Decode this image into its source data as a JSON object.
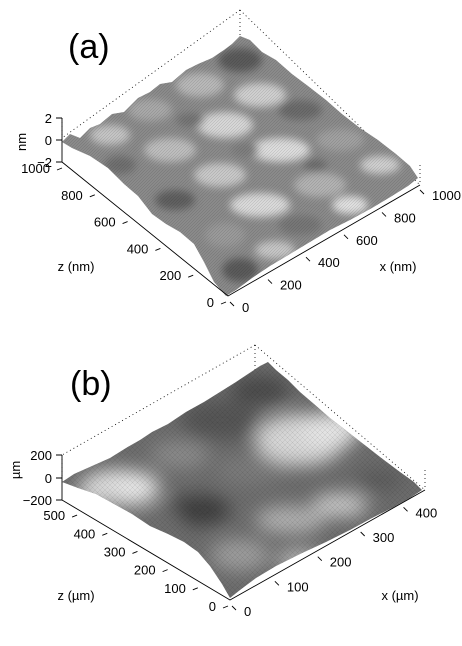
{
  "chart_data": [
    {
      "type": "surface",
      "panel_label": "(a)",
      "xlabel": "x (nm)",
      "zlabel": "z (nm)",
      "vlabel": "nm",
      "x_ticks": [
        "0",
        "200",
        "400",
        "600",
        "800",
        "1000"
      ],
      "z_ticks": [
        "0",
        "200",
        "400",
        "600",
        "800",
        "1000"
      ],
      "v_ticks": [
        "2",
        "0",
        "−2"
      ],
      "xlim": [
        0,
        1000
      ],
      "zlim": [
        0,
        1000
      ],
      "vlim": [
        -2,
        2
      ],
      "grid": false,
      "colormap": "grayscale"
    },
    {
      "type": "surface",
      "panel_label": "(b)",
      "xlabel": "x (µm)",
      "zlabel": "z (µm)",
      "vlabel": "µm",
      "x_ticks": [
        "0",
        "100",
        "200",
        "300",
        "400"
      ],
      "z_ticks": [
        "0",
        "100",
        "200",
        "300",
        "400",
        "500"
      ],
      "v_ticks": [
        "200",
        "0",
        "−200"
      ],
      "xlim": [
        0,
        450
      ],
      "zlim": [
        0,
        550
      ],
      "vlim": [
        -200,
        200
      ],
      "grid": false,
      "colormap": "grayscale"
    }
  ]
}
